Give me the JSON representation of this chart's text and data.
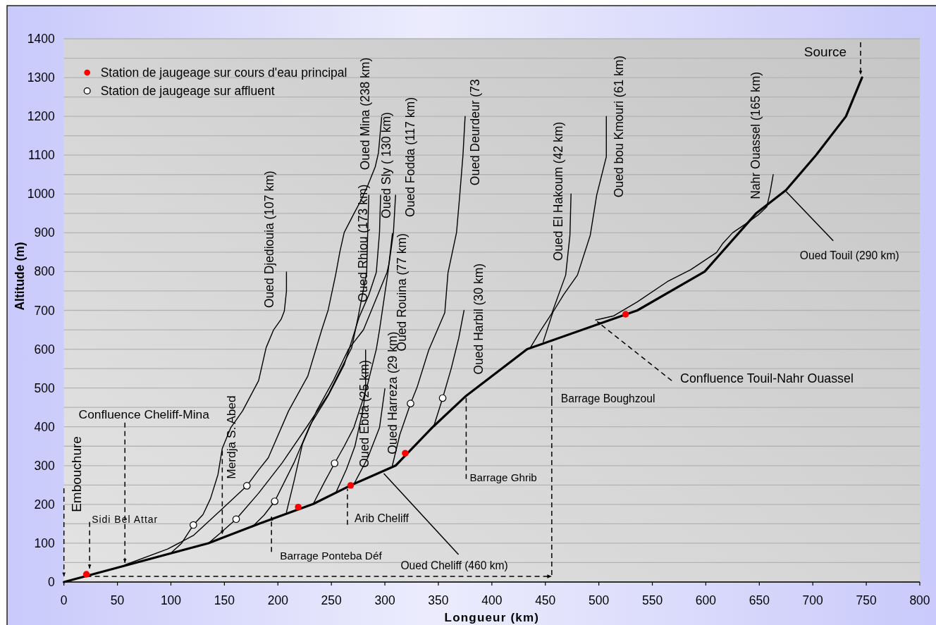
{
  "chart_data": {
    "type": "line",
    "xlabel": "Longueur (km)",
    "ylabel": "Altitude (m)",
    "xlim": [
      0,
      800
    ],
    "xticks": [
      0,
      50,
      100,
      150,
      200,
      250,
      300,
      350,
      400,
      450,
      500,
      550,
      600,
      650,
      700,
      750,
      800
    ],
    "ylim": [
      0,
      1400
    ],
    "yticks": [
      0,
      {
        "value": 50,
        "label": null
      },
      100,
      {
        "value": 150,
        "label": null
      },
      200,
      {
        "value": 250,
        "label": null
      },
      300,
      {
        "value": 350,
        "label": null
      },
      400,
      {
        "value": 450,
        "label": null
      },
      500,
      {
        "value": 550,
        "label": null
      },
      600,
      {
        "value": 650,
        "label": null
      },
      700,
      {
        "value": 750,
        "label": null
      },
      800,
      {
        "value": 850,
        "label": null
      },
      900,
      {
        "value": 950,
        "label": null
      },
      1000,
      {
        "value": 1050,
        "label": null
      },
      1100,
      {
        "value": 1150,
        "label": null
      },
      1200,
      {
        "value": 1250,
        "label": null
      },
      1300,
      {
        "value": 1350,
        "label": null
      },
      1400
    ],
    "grid": "y",
    "legend": "top left",
    "series": [
      {
        "color": "#000000",
        "x": [
          0,
          135,
          182,
          233,
          268,
          310,
          345,
          376,
          433,
          536,
          599,
          647,
          675,
          703,
          731,
          746
        ],
        "values": [
          0,
          100,
          150,
          201,
          249,
          300,
          400,
          480,
          600,
          700,
          800,
          950,
          1010,
          1100,
          1200,
          1300
        ]
      },
      {
        "name": "Oued Djediouia (107 km)",
        "color": "#000000",
        "x": [
          101,
          110,
          121,
          130,
          137,
          144,
          148,
          156,
          167,
          182,
          189,
          196,
          203,
          206,
          208,
          208
        ],
        "values": [
          77,
          100,
          147,
          174,
          215,
          277,
          344,
          398,
          441,
          519,
          604,
          650,
          677,
          698,
          749,
          799
        ]
      },
      {
        "name": "Oued Rhiou (173 km)",
        "color": "#000000",
        "x": [
          135,
          147,
          161,
          182,
          204,
          228,
          247,
          269,
          275,
          283,
          284,
          285
        ],
        "values": [
          100,
          128,
          162,
          229,
          307,
          404,
          483,
          604,
          683,
          798,
          907,
          997
        ]
      },
      {
        "name": "Oued Mina (238 km)",
        "color": "#000000",
        "x": [
          57,
          97,
          121,
          147,
          171,
          182,
          191,
          210,
          228,
          241,
          247,
          254,
          258,
          262,
          271,
          278,
          284,
          291,
          294,
          297
        ],
        "values": [
          44,
          85,
          120,
          186,
          248,
          289,
          320,
          441,
          531,
          650,
          701,
          792,
          852,
          901,
          949,
          985,
          1022,
          1070,
          1106,
          1198
        ]
      },
      {
        "name": "Oued Sly ( 130 km)",
        "color": "#000000",
        "x": [
          176,
          187,
          197,
          215,
          230,
          247,
          262,
          276,
          285,
          292,
          295,
          296
        ],
        "values": [
          142,
          172,
          208,
          307,
          404,
          480,
          560,
          683,
          740,
          798,
          901,
          997
        ]
      },
      {
        "name": "Oued Fodda (117 km)",
        "color": "#000000",
        "x": [
          208,
          215,
          223,
          236,
          252,
          266,
          280,
          302,
          304,
          308,
          310
        ],
        "values": [
          180,
          259,
          356,
          440,
          520,
          600,
          650,
          798,
          822,
          901,
          997
        ]
      },
      {
        "name": "Oued Rouina (77 km)",
        "color": "#000000",
        "x": [
          233,
          243,
          253,
          262,
          271,
          283,
          292,
          295,
          303,
          307
        ],
        "values": [
          201,
          255,
          306,
          350,
          398,
          500,
          600,
          650,
          800,
          898
        ]
      },
      {
        "name": "Oued Ebda (25 km)",
        "color": "#000000",
        "x": [
          254,
          264,
          272,
          280,
          282,
          282
        ],
        "values": [
          229,
          290,
          350,
          450,
          501,
          598
        ]
      },
      {
        "name": "Oued Harreza (29 km)",
        "color": "#000000",
        "x": [
          271,
          284,
          295,
          300
        ],
        "values": [
          252,
          320,
          398,
          498
        ]
      },
      {
        "name": "Oued Deurdeur (73",
        "color": "#000000",
        "x": [
          307,
          314,
          324,
          330,
          341,
          356,
          359,
          367,
          370,
          373,
          375
        ],
        "values": [
          300,
          380,
          460,
          501,
          598,
          694,
          797,
          901,
          997,
          1100,
          1200
        ]
      },
      {
        "name": "Oued Harbil (30 km)",
        "color": "#000000",
        "x": [
          346,
          354,
          362,
          369,
          374
        ],
        "values": [
          404,
          474,
          550,
          628,
          700
        ]
      },
      {
        "name": "Oued El Hakoum (42 km)",
        "color": "#000000",
        "x": [
          436,
          446,
          456,
          469,
          473,
          474
        ],
        "values": [
          604,
          650,
          692,
          791,
          894,
          1000
        ]
      },
      {
        "name": "Oued bou Kmouri (61 km)",
        "color": "#000000",
        "x": [
          448,
          457,
          467,
          480,
          492,
          498,
          507,
          507
        ],
        "values": [
          619,
          695,
          740,
          791,
          894,
          997,
          1096,
          1200
        ]
      },
      {
        "name": "Nahr Ouassel (165 km)",
        "color": "#000000",
        "x": [
          497,
          514,
          536,
          564,
          586,
          610,
          616,
          625,
          640,
          649,
          657,
          660,
          663
        ],
        "values": [
          675,
          686,
          722,
          774,
          805,
          849,
          873,
          900,
          928,
          946,
          967,
          1003,
          1050
        ]
      },
      {
        "name": "Station de jaugeage sur cours d'eau principal",
        "type": "scatter",
        "marker": "circle",
        "color": "#ff0000",
        "x": [
          21,
          219,
          268,
          319,
          525
        ],
        "values": [
          20,
          193,
          249,
          332,
          690
        ]
      },
      {
        "name": "Station de jaugeage sur affluent",
        "type": "scatter",
        "marker": "circle",
        "color": "#ffffff",
        "x": [
          121,
          161,
          171,
          197,
          253,
          324,
          354
        ],
        "values": [
          147,
          162,
          248,
          208,
          306,
          460,
          474
        ]
      }
    ],
    "annotations": [
      {
        "text": "Embouchure",
        "x": 0,
        "y": 0
      },
      {
        "text": "Sidi Bel Attar",
        "x": 24,
        "y": 35
      },
      {
        "text": "Confluence Cheliff-Mina",
        "x": 57,
        "y": 44
      },
      {
        "text": "Merdja S. Abed",
        "x": 148,
        "y": 117
      },
      {
        "text": "Barrage Ponteba Déf",
        "x": 194,
        "y": 172
      },
      {
        "text": "Arib Cheliff",
        "x": 265,
        "y": 244
      },
      {
        "text": "Barrage Ghrib",
        "x": 376,
        "y": 480
      },
      {
        "text": "Barrage Boughzoul",
        "x": 456,
        "y": 623
      },
      {
        "text": "Confluence Touil-Nahr Ouassel",
        "x": 497,
        "y": 675
      },
      {
        "text": "Source",
        "x": 746,
        "y": 1300
      },
      {
        "text": "Oued Cheliff (460 km)",
        "x": 299,
        "y": 285
      },
      {
        "text": "Oued Touil (290 km)",
        "x": 675,
        "y": 1010
      }
    ]
  }
}
